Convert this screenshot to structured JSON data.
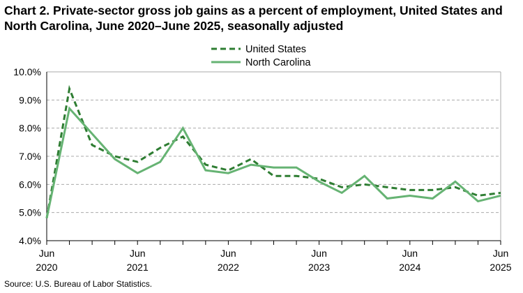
{
  "chart_data": {
    "type": "line",
    "title": "Chart 2. Private-sector gross job gains as a percent of employment, United States and North Carolina, June 2020–June 2025, seasonally adjusted",
    "source": "Source: U.S. Bureau of Labor Statistics.",
    "x": [
      "Jun 2020",
      "Sep 2020",
      "Dec 2020",
      "Mar 2021",
      "Jun 2021",
      "Sep 2021",
      "Dec 2021",
      "Mar 2022",
      "Jun 2022",
      "Sep 2022",
      "Dec 2022",
      "Mar 2023",
      "Jun 2023",
      "Sep 2023",
      "Dec 2023",
      "Mar 2024",
      "Jun 2024",
      "Sep 2024",
      "Dec 2024",
      "Mar 2025",
      "Jun 2025"
    ],
    "x_tick_labels": [
      {
        "index": 0,
        "month": "Jun",
        "year": "2020"
      },
      {
        "index": 4,
        "month": "Jun",
        "year": "2021"
      },
      {
        "index": 8,
        "month": "Jun",
        "year": "2022"
      },
      {
        "index": 12,
        "month": "Jun",
        "year": "2023"
      },
      {
        "index": 16,
        "month": "Jun",
        "year": "2024"
      },
      {
        "index": 20,
        "month": "Jun",
        "year": "2025"
      }
    ],
    "y_ticks": [
      "4.0%",
      "5.0%",
      "6.0%",
      "7.0%",
      "8.0%",
      "9.0%",
      "10.0%"
    ],
    "ylim": [
      4,
      10
    ],
    "grid": "horizontal dashed",
    "legend": "top-center",
    "series": [
      {
        "name": "United States",
        "style": "dashed",
        "color": "#2e7d32",
        "values": [
          4.8,
          9.4,
          7.4,
          7.0,
          6.8,
          7.3,
          7.7,
          6.7,
          6.5,
          6.9,
          6.3,
          6.3,
          6.2,
          5.9,
          6.0,
          5.9,
          5.8,
          5.8,
          5.9,
          5.6,
          5.7
        ]
      },
      {
        "name": "North Carolina",
        "style": "solid",
        "color": "#66b373",
        "values": [
          4.8,
          8.7,
          7.8,
          6.9,
          6.4,
          6.8,
          8.0,
          6.5,
          6.4,
          6.7,
          6.6,
          6.6,
          6.1,
          5.7,
          6.3,
          5.5,
          5.6,
          5.5,
          6.1,
          5.4,
          5.6
        ]
      }
    ]
  }
}
